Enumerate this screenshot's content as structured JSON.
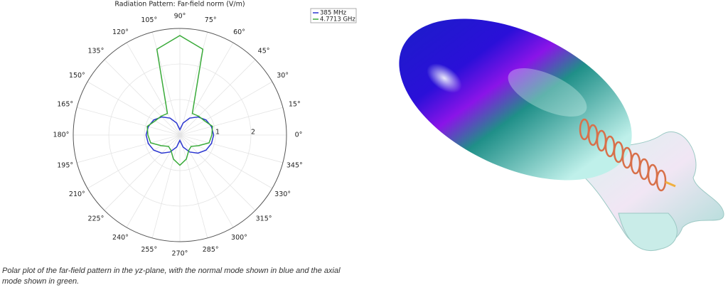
{
  "chart_data": {
    "type": "polar",
    "title": "Radiation Pattern: Far-field norm (V/m)",
    "theta": [
      0,
      15,
      30,
      45,
      60,
      75,
      90,
      105,
      120,
      135,
      150,
      165,
      180,
      195,
      210,
      225,
      240,
      255,
      270,
      285,
      300,
      315,
      330,
      345
    ],
    "series": [
      {
        "name": "385 MHz",
        "color": "#2a35d0",
        "values": [
          0.95,
          0.92,
          0.85,
          0.72,
          0.55,
          0.35,
          0.15,
          0.35,
          0.55,
          0.72,
          0.85,
          0.92,
          0.95,
          0.92,
          0.85,
          0.72,
          0.55,
          0.35,
          0.15,
          0.35,
          0.55,
          0.72,
          0.85,
          0.92
        ]
      },
      {
        "name": "4.7713 GHz",
        "color": "#3aab3a",
        "values": [
          0.9,
          0.95,
          0.8,
          0.75,
          0.7,
          2.5,
          2.8,
          2.5,
          0.7,
          0.75,
          0.8,
          0.95,
          0.9,
          0.85,
          0.6,
          0.45,
          0.5,
          0.7,
          0.85,
          0.7,
          0.5,
          0.45,
          0.6,
          0.85
        ]
      }
    ],
    "thetaticks": [
      {
        "value": 0,
        "label": "0°"
      },
      {
        "value": 15,
        "label": "15°"
      },
      {
        "value": 30,
        "label": "30°"
      },
      {
        "value": 45,
        "label": "45°"
      },
      {
        "value": 60,
        "label": "60°"
      },
      {
        "value": 75,
        "label": "75°"
      },
      {
        "value": 90,
        "label": "90°"
      },
      {
        "value": 105,
        "label": "105°"
      },
      {
        "value": 120,
        "label": "120°"
      },
      {
        "value": 135,
        "label": "135°"
      },
      {
        "value": 150,
        "label": "150°"
      },
      {
        "value": 165,
        "label": "165°"
      },
      {
        "value": 180,
        "label": "180°"
      },
      {
        "value": 195,
        "label": "195°"
      },
      {
        "value": 210,
        "label": "210°"
      },
      {
        "value": 225,
        "label": "225°"
      },
      {
        "value": 240,
        "label": "240°"
      },
      {
        "value": 255,
        "label": "255°"
      },
      {
        "value": 270,
        "label": "270°"
      },
      {
        "value": 285,
        "label": "285°"
      },
      {
        "value": 300,
        "label": "300°"
      },
      {
        "value": 315,
        "label": "315°"
      },
      {
        "value": 330,
        "label": "330°"
      },
      {
        "value": 345,
        "label": "345°"
      }
    ],
    "rlim": [
      0,
      3
    ],
    "rticks": [
      1,
      2
    ],
    "grid": true,
    "legend": "upper right"
  },
  "caption": "Polar plot of the far-field pattern in the yz-plane, with the normal mode shown in blue and the axial mode shown in green."
}
